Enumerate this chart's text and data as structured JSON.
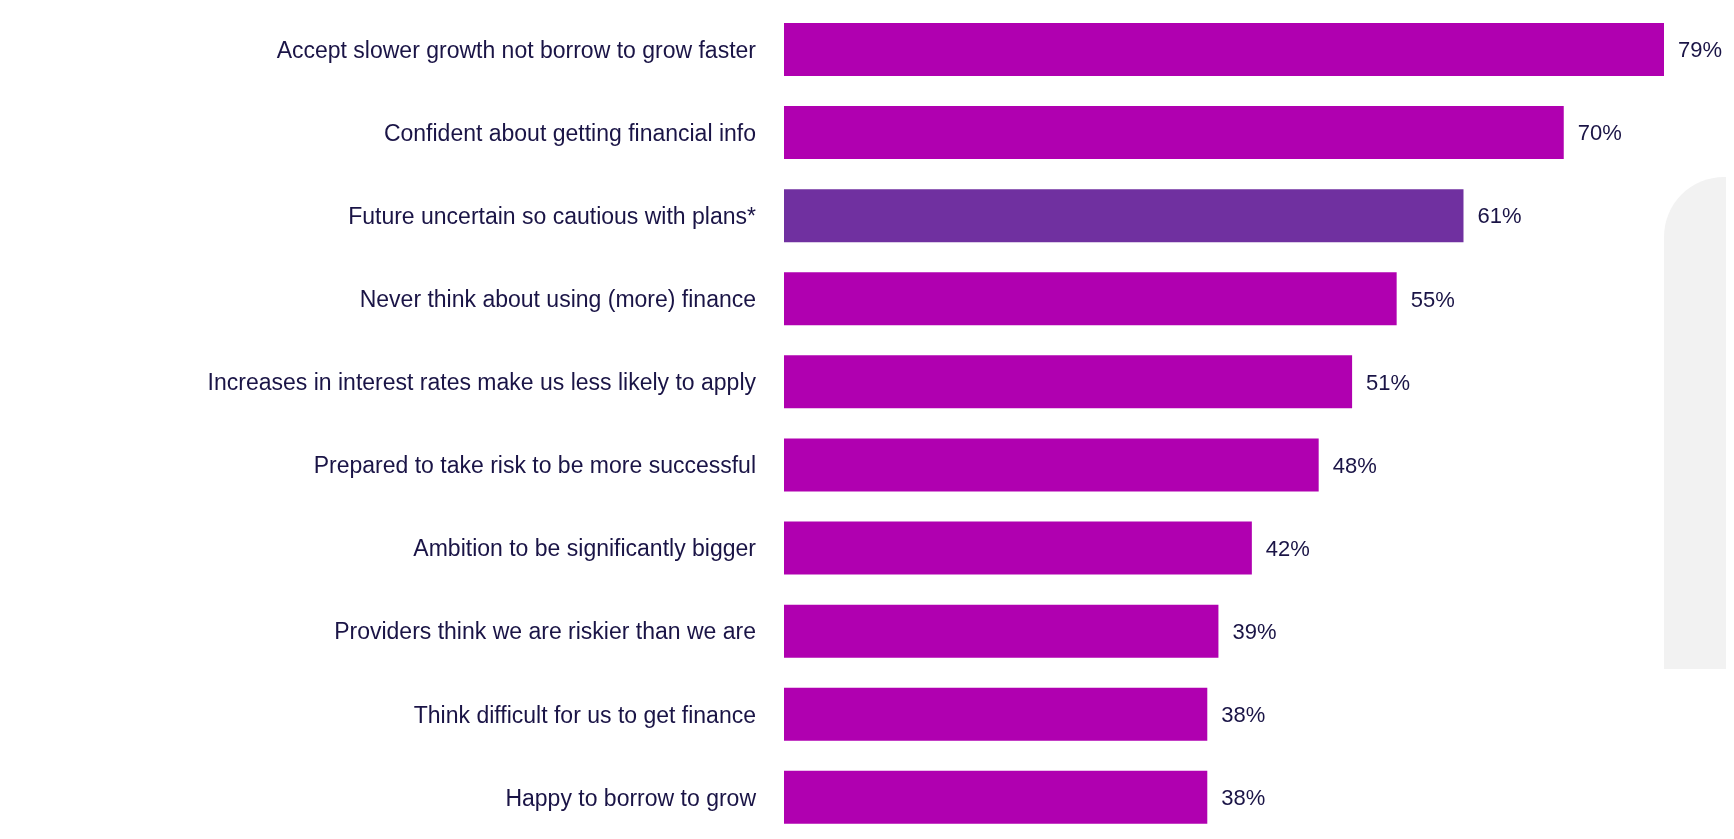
{
  "chart_data": {
    "type": "bar",
    "orientation": "horizontal",
    "categories": [
      "Accept slower growth not borrow to grow faster",
      "Confident about getting financial info",
      "Future uncertain so cautious with plans*",
      "Never think about using (more) finance",
      "Increases in interest rates make us less likely to apply",
      "Prepared to take risk to be more successful",
      "Ambition to be significantly bigger",
      "Providers think we are riskier than we are",
      "Think difficult for us to get finance",
      "Happy to borrow to grow"
    ],
    "values": [
      79,
      70,
      61,
      55,
      51,
      48,
      42,
      39,
      38,
      38
    ],
    "colors": [
      "#b000b0",
      "#b000b0",
      "#7030a0",
      "#b000b0",
      "#b000b0",
      "#b000b0",
      "#b000b0",
      "#b000b0",
      "#b000b0",
      "#b000b0"
    ],
    "value_labels": [
      "79%",
      "70%",
      "61%",
      "55%",
      "51%",
      "48%",
      "42%",
      "39%",
      "38%",
      "38%"
    ],
    "grid": false,
    "legend": false
  }
}
